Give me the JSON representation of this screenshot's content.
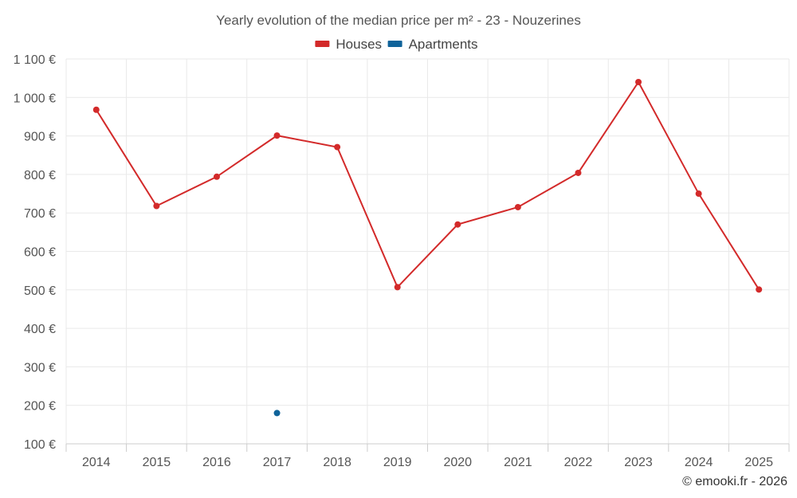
{
  "chart_data": {
    "type": "line",
    "title": "Yearly evolution of the median price per m² - 23 - Nouzerines",
    "categories": [
      "2014",
      "2015",
      "2016",
      "2017",
      "2018",
      "2019",
      "2020",
      "2021",
      "2022",
      "2023",
      "2024",
      "2025"
    ],
    "series": [
      {
        "name": "Houses",
        "color": "#d32a2a",
        "values": [
          968,
          718,
          794,
          901,
          871,
          507,
          670,
          715,
          804,
          1040,
          750,
          501
        ]
      },
      {
        "name": "Apartments",
        "color": "#0f639a",
        "values": [
          null,
          null,
          null,
          180,
          null,
          null,
          null,
          null,
          null,
          null,
          null,
          null
        ]
      }
    ],
    "ylim": [
      100,
      1100
    ],
    "yticks": [
      100,
      200,
      300,
      400,
      500,
      600,
      700,
      800,
      900,
      1000,
      1100
    ],
    "ytick_labels": [
      "100 €",
      "200 €",
      "300 €",
      "400 €",
      "500 €",
      "600 €",
      "700 €",
      "800 €",
      "900 €",
      "1 000 €",
      "1 100 €"
    ],
    "xlabel": "",
    "ylabel": "",
    "grid": true,
    "legend_position": "top-center"
  },
  "credit": "© emooki.fr - 2026"
}
